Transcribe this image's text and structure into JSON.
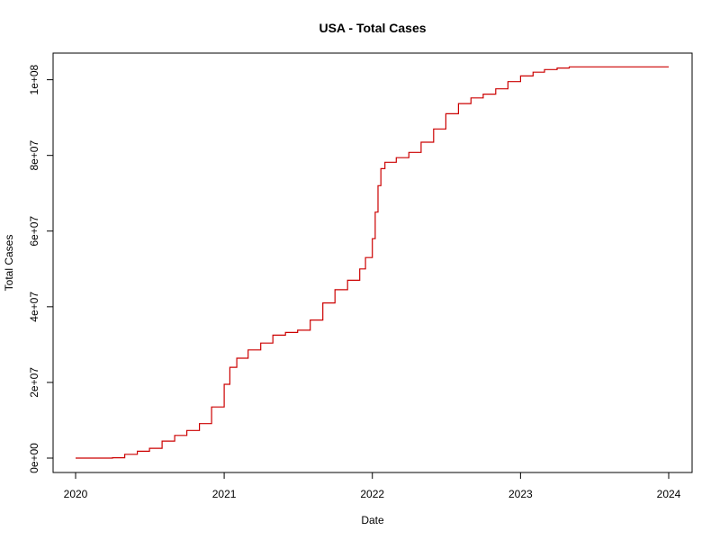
{
  "chart_data": {
    "type": "line",
    "title": "USA - Total Cases",
    "xlabel": "Date",
    "ylabel": "Total Cases",
    "x_ticks": [
      "2020",
      "2021",
      "2022",
      "2023",
      "2024"
    ],
    "y_ticks": [
      {
        "value": 0,
        "label": "0e+00"
      },
      {
        "value": 20000000,
        "label": "2e+07"
      },
      {
        "value": 40000000,
        "label": "4e+07"
      },
      {
        "value": 60000000,
        "label": "6e+07"
      },
      {
        "value": 80000000,
        "label": "8e+07"
      },
      {
        "value": 100000000,
        "label": "1e+08"
      }
    ],
    "xlim": [
      "2020-01-01",
      "2024-01-01"
    ],
    "ylim": [
      0,
      103000000
    ],
    "grid": false,
    "line_color": "#cc0000",
    "step": "post",
    "series": [
      {
        "x": [
          "2020-01-01",
          "2020-03-01",
          "2020-04-01",
          "2020-05-01",
          "2020-06-01",
          "2020-07-01",
          "2020-08-01",
          "2020-09-01",
          "2020-10-01",
          "2020-11-01",
          "2020-12-01",
          "2021-01-01",
          "2021-01-15",
          "2021-02-01",
          "2021-03-01",
          "2021-04-01",
          "2021-05-01",
          "2021-06-01",
          "2021-07-01",
          "2021-08-01",
          "2021-09-01",
          "2021-10-01",
          "2021-11-01",
          "2021-12-01",
          "2021-12-15",
          "2022-01-01",
          "2022-01-08",
          "2022-01-15",
          "2022-01-22",
          "2022-02-01",
          "2022-03-01",
          "2022-04-01",
          "2022-05-01",
          "2022-06-01",
          "2022-07-01",
          "2022-08-01",
          "2022-09-01",
          "2022-10-01",
          "2022-11-01",
          "2022-12-01",
          "2023-01-01",
          "2023-02-01",
          "2023-03-01",
          "2023-04-01",
          "2023-05-01",
          "2024-01-01"
        ],
        "y": [
          0,
          0,
          100000,
          1000000,
          1800000,
          2600000,
          4500000,
          6000000,
          7300000,
          9100000,
          13500000,
          19500000,
          24000000,
          26400000,
          28600000,
          30400000,
          32500000,
          33200000,
          33800000,
          36500000,
          41000000,
          44500000,
          47000000,
          50000000,
          53000000,
          58000000,
          65000000,
          72000000,
          76500000,
          78200000,
          79400000,
          80800000,
          83500000,
          87000000,
          91000000,
          93700000,
          95200000,
          96200000,
          97600000,
          99500000,
          101000000,
          102000000,
          102700000,
          103100000,
          103400000,
          103400000
        ]
      }
    ]
  }
}
